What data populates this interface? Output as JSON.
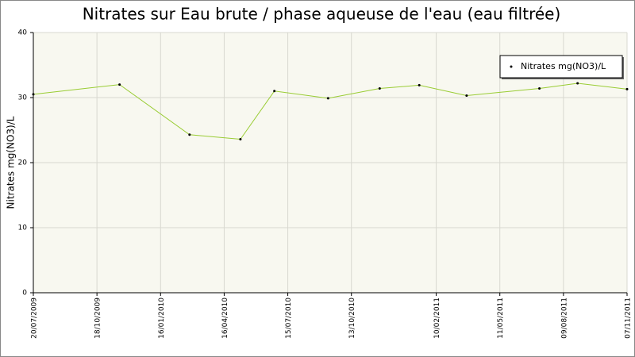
{
  "chart_data": {
    "type": "line",
    "title": "Nitrates sur Eau brute / phase aqueuse de l'eau (eau filtrée)",
    "y_label": "Nitrates mg(NO3)/L",
    "x": [
      "20/07/2009",
      "19/11/2009",
      "26/02/2010",
      "09/05/2010",
      "26/06/2010",
      "10/09/2010",
      "22/11/2010",
      "17/01/2011",
      "25/03/2011",
      "06/07/2011",
      "29/08/2011",
      "07/11/2011"
    ],
    "series": [
      {
        "name": "Nitrates mg(NO3)/L",
        "color": "#99cc33",
        "values": [
          30.5,
          32,
          24.3,
          23.6,
          31,
          29.9,
          31.4,
          31.9,
          30.3,
          31.4,
          32.2,
          31.3
        ]
      }
    ],
    "xlim": [
      "20/07/2009",
      "07/11/2011"
    ],
    "xticks": [
      "20/07/2009",
      "18/10/2009",
      "16/01/2010",
      "16/04/2010",
      "15/07/2010",
      "13/10/2010",
      "10/02/2011",
      "11/05/2011",
      "09/08/2011",
      "07/11/2011"
    ],
    "ylim": [
      0,
      40
    ],
    "yticks": [
      0,
      10,
      20,
      30,
      40
    ],
    "grid": true,
    "legend": "top-right"
  }
}
